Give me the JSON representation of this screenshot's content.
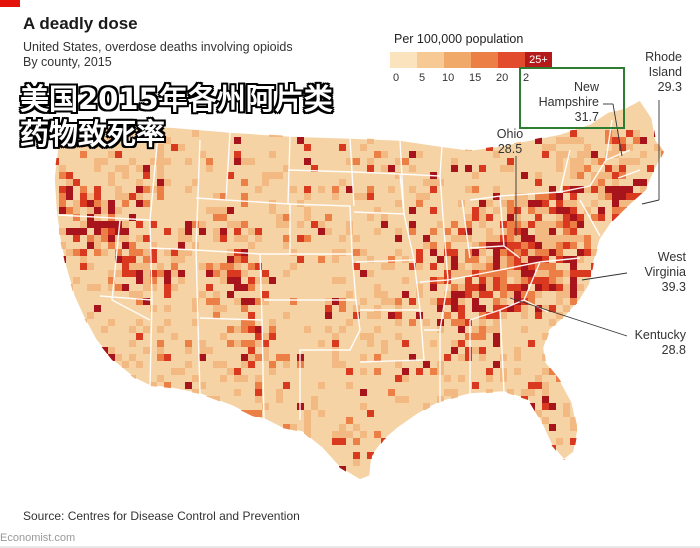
{
  "header": {
    "title": "A deadly dose",
    "subtitle_line1": "United States, overdose deaths involving opioids",
    "subtitle_line2": "By county, 2015"
  },
  "overlay": {
    "line1": "美国2015年各州阿片类",
    "line2": "药物致死率"
  },
  "legend": {
    "title": "Per 100,000 population",
    "ticks": [
      "0",
      "5",
      "10",
      "15",
      "20",
      "2"
    ],
    "top_label": "25+",
    "colors": [
      "#fbe3bd",
      "#f6c995",
      "#f1a96a",
      "#ec7f45",
      "#e24b2b",
      "#b41a1a"
    ]
  },
  "callouts": {
    "rhode_island": {
      "name1": "Rhode",
      "name2": "Island",
      "value": "29.3"
    },
    "new_hampshire": {
      "name1": "New",
      "name2": "Hampshire",
      "value": "31.7"
    },
    "ohio": {
      "name": "Ohio",
      "value": "28.5"
    },
    "west_virginia": {
      "name1": "West",
      "name2": "Virginia",
      "value": "39.3"
    },
    "kentucky": {
      "name": "Kentucky",
      "value": "28.8"
    }
  },
  "footer": {
    "source": "Source: Centres for Disease Control and Prevention",
    "watermark": "Economist.com"
  },
  "colors": {
    "base": "#f5d3a4",
    "low": "#f2b982",
    "mid": "#ec7f45",
    "high": "#d93a1f",
    "top": "#a8141b",
    "highlight_box": "#2e7d32",
    "brand_red": "#e3120b"
  }
}
